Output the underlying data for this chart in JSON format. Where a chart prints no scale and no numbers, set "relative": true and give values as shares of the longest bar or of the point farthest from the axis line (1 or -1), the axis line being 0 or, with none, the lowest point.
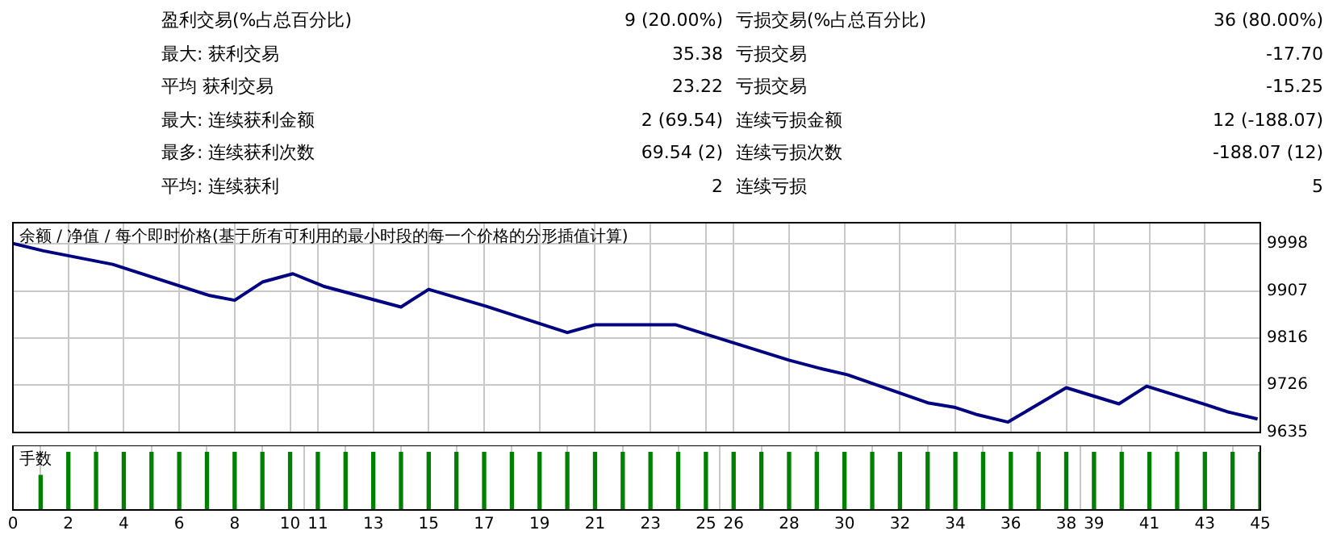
{
  "chart_data": [
    {
      "type": "other",
      "annotations": [
        "盈利交易(%占总百分比)",
        "9 (20.00%)",
        "亏损交易(%占总百分比)",
        "36 (80.00%)",
        "最大: 获利交易",
        "35.38",
        "亏损交易",
        "-17.70",
        "平均 获利交易",
        "23.22",
        "亏损交易",
        "-15.25",
        "最大: 连续获利金额",
        "2 (69.54)",
        "连续亏损金额",
        "12 (-188.07)",
        "最多: 连续获利次数",
        "69.54 (2)",
        "连续亏损次数",
        "-188.07 (12)",
        "平均: 连续获利",
        "2",
        "连续亏损",
        "5"
      ]
    },
    {
      "type": "line",
      "title": "余额 / 净值 / 每个即时价格(基于所有可利用的最小时段的每一个价格的分形插值计算)",
      "series": [
        {
          "color": "#000080",
          "x": [
            0,
            1.1,
            3.6,
            7.1,
            8.0,
            9.0,
            10.1,
            11.2,
            14.0,
            15.0,
            17.1,
            20.0,
            21.0,
            23.9,
            28.0,
            29.2,
            30.1,
            33.0,
            34.0,
            34.8,
            35.9,
            38.0,
            39.9,
            40.9,
            43.0,
            43.8,
            44.9
          ],
          "values": [
            9998,
            9984,
            9958,
            9898,
            9889,
            9924,
            9940,
            9916,
            9876,
            9910,
            9877,
            9827,
            9842,
            9842,
            9774,
            9757,
            9746,
            9692,
            9683,
            9669,
            9655,
            9721,
            9690,
            9724,
            9689,
            9675,
            9661
          ]
        }
      ],
      "xlim": [
        0,
        45
      ],
      "ylim": [
        9635,
        10038
      ],
      "yticks": [
        9635,
        9726,
        9816,
        9907,
        9998
      ],
      "xticks": [
        0,
        2,
        4,
        6,
        8,
        10,
        11,
        13,
        15,
        17,
        19,
        21,
        23,
        25,
        26,
        28,
        30,
        32,
        34,
        36,
        38,
        39,
        41,
        43,
        45
      ],
      "tick_labels": "y",
      "grid": true,
      "line_style": "solid",
      "marker": "none",
      "legend": false
    },
    {
      "type": "bar",
      "ylabel": "手数",
      "relative": true,
      "color": "#008000",
      "x": [
        1,
        2,
        3,
        4,
        5,
        6,
        7,
        8,
        9,
        10,
        11,
        12,
        13,
        14,
        15,
        16,
        17,
        18,
        19,
        20,
        21,
        22,
        23,
        24,
        25,
        26,
        27,
        28,
        29,
        30,
        31,
        32,
        33,
        34,
        35,
        36,
        37,
        38,
        39,
        40,
        41,
        42,
        43,
        44,
        45
      ],
      "values": [
        0.6,
        1,
        1,
        1,
        1,
        1,
        1,
        1,
        1,
        1,
        1,
        1,
        1,
        1,
        1,
        1,
        1,
        1,
        1,
        1,
        1,
        1,
        1,
        1,
        1,
        1,
        1,
        1,
        1,
        1,
        1,
        1,
        1,
        1,
        1,
        1,
        1,
        1,
        1,
        1,
        1,
        1,
        1,
        1,
        1
      ],
      "xlim": [
        0,
        45
      ],
      "xticks": [
        0,
        2,
        4,
        6,
        8,
        10,
        11,
        13,
        15,
        17,
        19,
        21,
        23,
        25,
        26,
        28,
        30,
        32,
        34,
        36,
        38,
        39,
        41,
        43,
        45
      ],
      "tick_labels": "x",
      "grid": "x",
      "legend": false
    }
  ]
}
